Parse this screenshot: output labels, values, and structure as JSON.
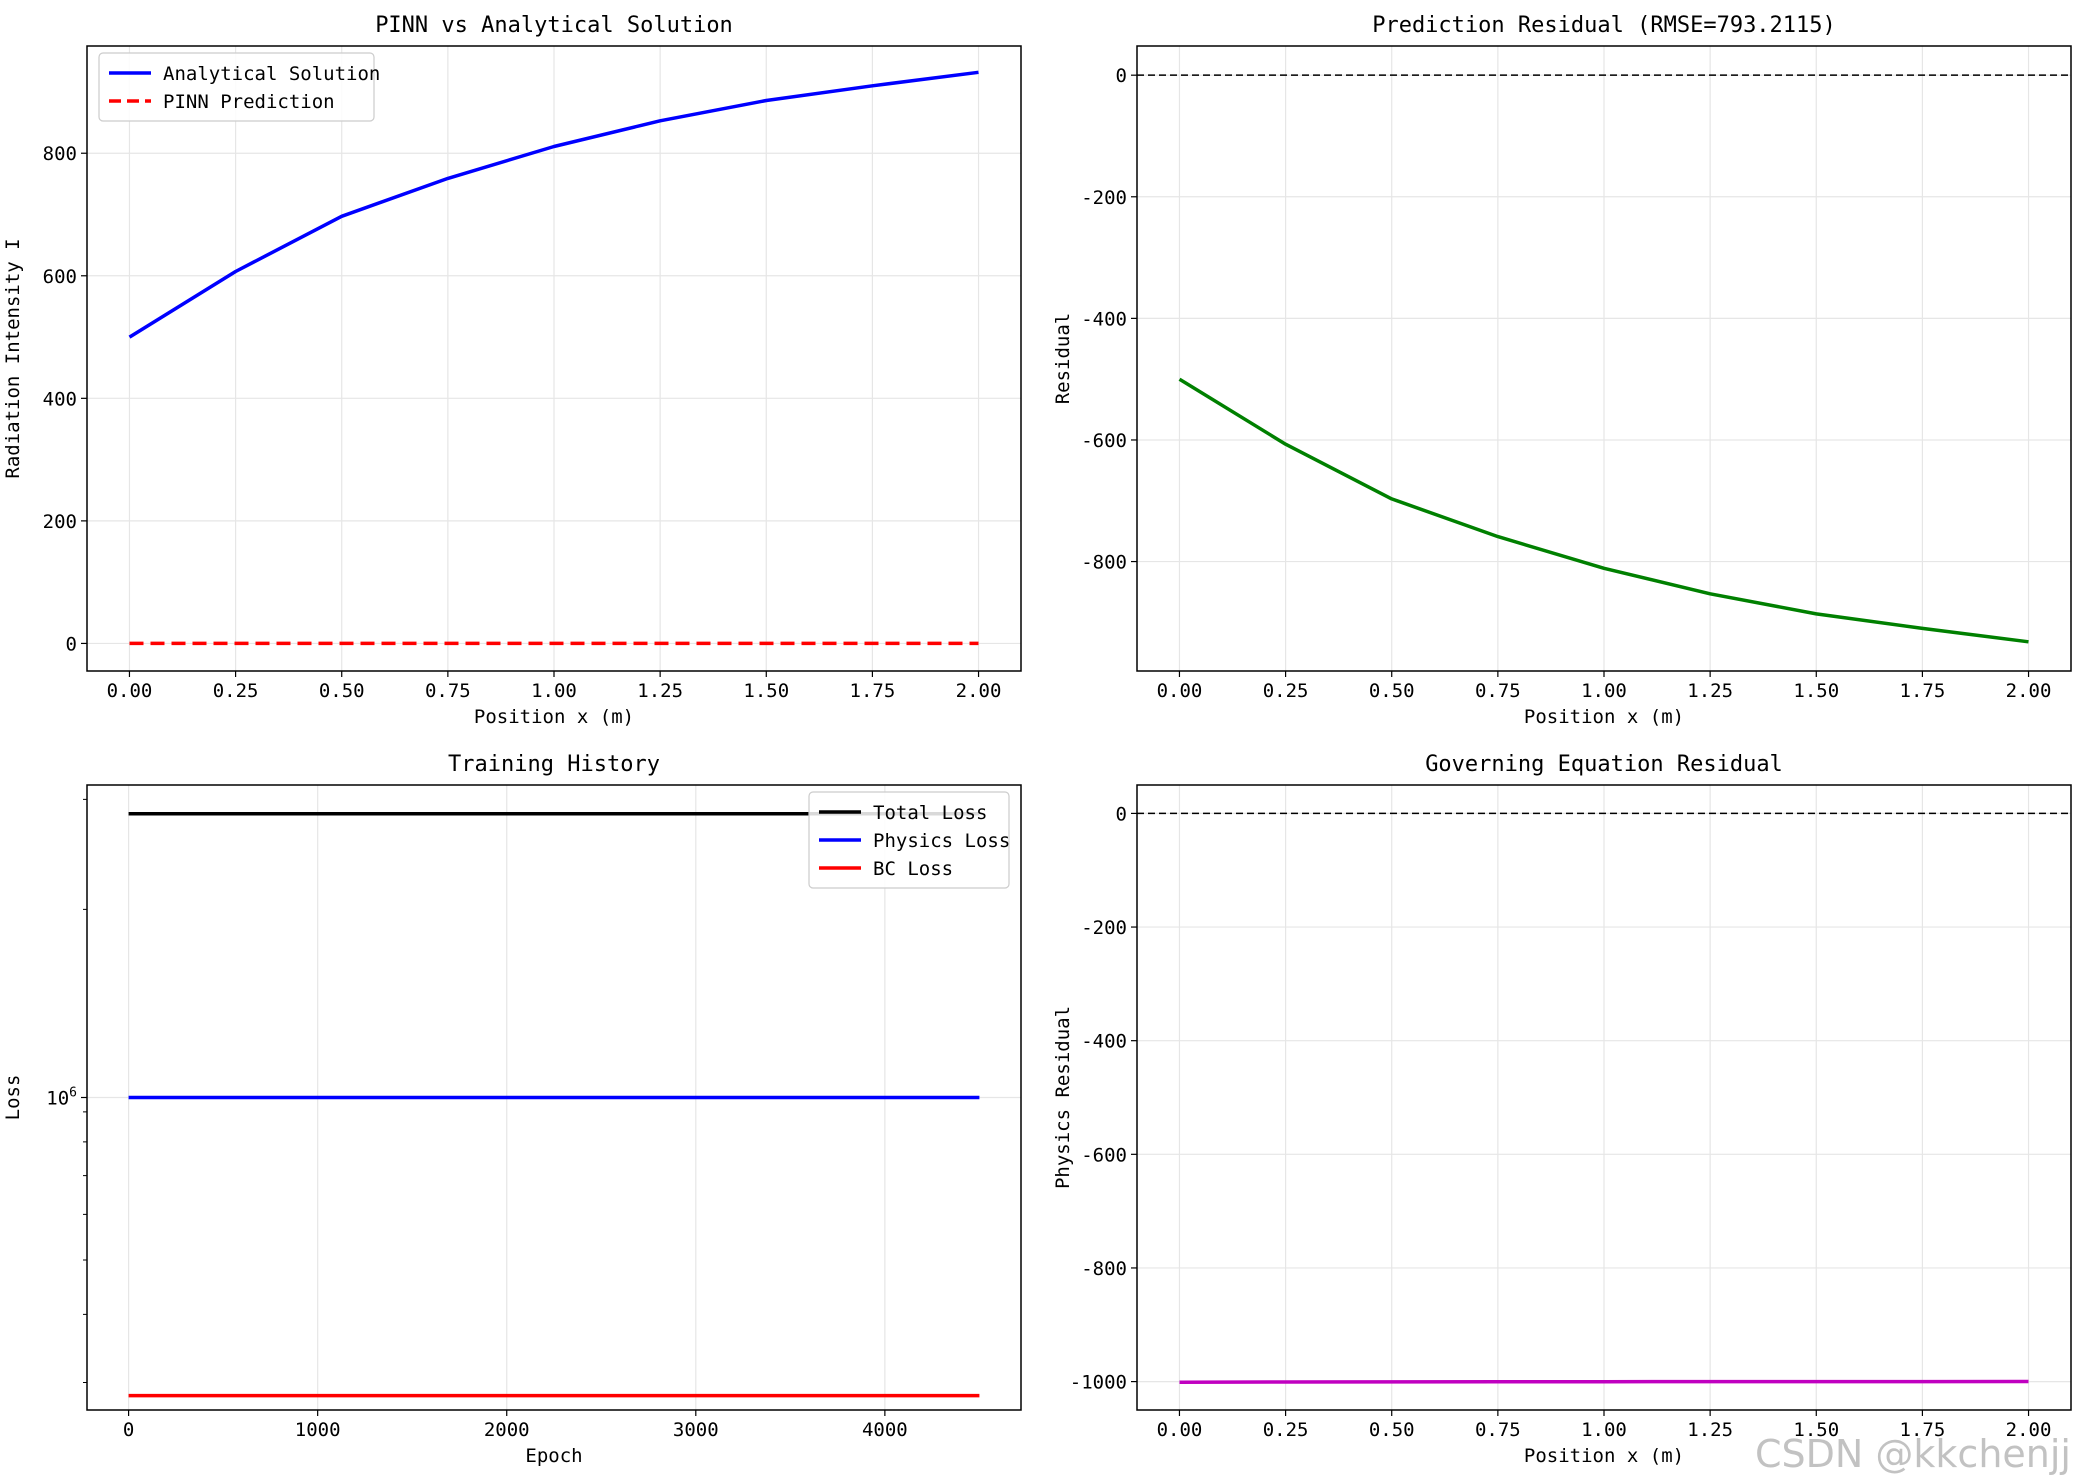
{
  "watermark": "CSDN @kkchenjj",
  "chart_data": [
    {
      "type": "line",
      "title": "PINN vs Analytical Solution",
      "xlabel": "Position x (m)",
      "ylabel": "Radiation Intensity I",
      "xlim": [
        -0.1,
        2.1
      ],
      "ylim": [
        -45,
        975
      ],
      "xticks": [
        0,
        0.25,
        0.5,
        0.75,
        1.0,
        1.25,
        1.5,
        1.75,
        2.0
      ],
      "xticklabels": [
        "0.00",
        "0.25",
        "0.50",
        "0.75",
        "1.00",
        "1.25",
        "1.50",
        "1.75",
        "2.00"
      ],
      "yticks": [
        0,
        200,
        400,
        600,
        800
      ],
      "yticklabels": [
        "0",
        "200",
        "400",
        "600",
        "800"
      ],
      "grid": true,
      "legend": "upper-left",
      "x": [
        0.0,
        0.25,
        0.5,
        0.75,
        1.0,
        1.25,
        1.5,
        1.75,
        2.0
      ],
      "series": [
        {
          "name": "Analytical Solution",
          "color": "#0000ff",
          "style": "solid",
          "values": [
            500,
            607,
            697,
            759,
            811,
            853,
            886,
            910,
            932
          ]
        },
        {
          "name": "PINN Prediction",
          "color": "#ff0000",
          "style": "dashed",
          "values": [
            0,
            0,
            0,
            0,
            0,
            0,
            0,
            0,
            0
          ]
        }
      ]
    },
    {
      "type": "line",
      "title": "Prediction Residual (RMSE=793.2115)",
      "xlabel": "Position x (m)",
      "ylabel": "Residual",
      "xlim": [
        -0.1,
        2.1
      ],
      "ylim": [
        -980,
        48
      ],
      "xticks": [
        0,
        0.25,
        0.5,
        0.75,
        1.0,
        1.25,
        1.5,
        1.75,
        2.0
      ],
      "xticklabels": [
        "0.00",
        "0.25",
        "0.50",
        "0.75",
        "1.00",
        "1.25",
        "1.50",
        "1.75",
        "2.00"
      ],
      "yticks": [
        0,
        -200,
        -400,
        -600,
        -800
      ],
      "yticklabels": [
        "0",
        "-200",
        "-400",
        "-600",
        "-800"
      ],
      "grid": true,
      "hline": 0,
      "x": [
        0.0,
        0.25,
        0.5,
        0.75,
        1.0,
        1.25,
        1.5,
        1.75,
        2.0
      ],
      "series": [
        {
          "color": "#008000",
          "style": "solid",
          "values": [
            -500,
            -607,
            -697,
            -759,
            -811,
            -853,
            -886,
            -910,
            -932
          ]
        }
      ]
    },
    {
      "type": "line",
      "title": "Training History",
      "xlabel": "Epoch",
      "ylabel": "Loss",
      "yscale": "log",
      "xlim": [
        -220,
        4720
      ],
      "ylim_log10": [
        5.5,
        6.5
      ],
      "xticks": [
        0,
        1000,
        2000,
        3000,
        4000
      ],
      "xticklabels": [
        "0",
        "1000",
        "2000",
        "3000",
        "4000"
      ],
      "yticks": [
        6
      ],
      "yticklabels": [
        "10^6"
      ],
      "yminorticks_log10": [
        5.544,
        5.653,
        5.74,
        5.813,
        5.875,
        5.929,
        5.977,
        6.301,
        6.477
      ],
      "grid": true,
      "legend": "upper-right",
      "x": [
        0,
        4500
      ],
      "series": [
        {
          "name": "Total Loss",
          "color": "#000000",
          "style": "solid",
          "values_log10": [
            6.454,
            6.454
          ]
        },
        {
          "name": "Physics Loss",
          "color": "#0000ff",
          "style": "solid",
          "values_log10": [
            6.0,
            6.0
          ]
        },
        {
          "name": "BC Loss",
          "color": "#ff0000",
          "style": "solid",
          "values_log10": [
            5.523,
            5.523
          ]
        }
      ]
    },
    {
      "type": "line",
      "title": "Governing Equation Residual",
      "xlabel": "Position x (m)",
      "ylabel": "Physics Residual",
      "xlim": [
        -0.1,
        2.1
      ],
      "ylim": [
        -1050,
        50
      ],
      "xticks": [
        0,
        0.25,
        0.5,
        0.75,
        1.0,
        1.25,
        1.5,
        1.75,
        2.0
      ],
      "xticklabels": [
        "0.00",
        "0.25",
        "0.50",
        "0.75",
        "1.00",
        "1.25",
        "1.50",
        "1.75",
        "2.00"
      ],
      "yticks": [
        0,
        -200,
        -400,
        -600,
        -800,
        -1000
      ],
      "yticklabels": [
        "0",
        "-200",
        "-400",
        "-600",
        "-800",
        "-1000"
      ],
      "grid": true,
      "hline": 0,
      "x": [
        0.0,
        0.25,
        0.5,
        0.75,
        1.0,
        1.25,
        1.5,
        1.75,
        2.0
      ],
      "series": [
        {
          "color": "#c000c0",
          "style": "solid",
          "values": [
            -1001,
            -1000.8,
            -1000.6,
            -1000.4,
            -1000.2,
            -1000.1,
            -1000,
            -1000,
            -999.8
          ]
        }
      ]
    }
  ]
}
